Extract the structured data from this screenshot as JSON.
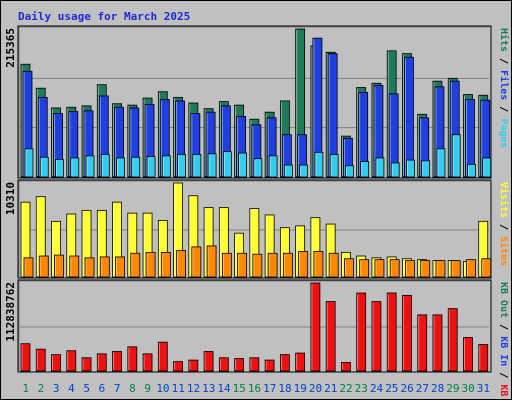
{
  "chart_data": [
    {
      "type": "bar",
      "title": "Daily usage for March 2025",
      "ymax_label": "215365",
      "categories": [
        "1",
        "2",
        "3",
        "4",
        "5",
        "6",
        "7",
        "8",
        "9",
        "10",
        "11",
        "12",
        "13",
        "14",
        "15",
        "16",
        "17",
        "18",
        "19",
        "20",
        "21",
        "22",
        "23",
        "24",
        "25",
        "26",
        "27",
        "28",
        "29",
        "30",
        "31"
      ],
      "weekend_days": [
        "1",
        "2",
        "8",
        "9",
        "15",
        "16",
        "22",
        "23",
        "29",
        "30"
      ],
      "series": [
        {
          "name": "Hits",
          "color": "#1f7a5a",
          "values": [
            160000,
            126000,
            98000,
            99000,
            101000,
            131000,
            104000,
            102000,
            112000,
            121000,
            113000,
            105000,
            97000,
            107000,
            102000,
            82000,
            92000,
            108000,
            210000,
            186000,
            177000,
            58000,
            127000,
            133000,
            179000,
            175000,
            89000,
            136000,
            140000,
            117000,
            116000
          ]
        },
        {
          "name": "Files",
          "color": "#1f3fe0",
          "values": [
            150000,
            113000,
            90000,
            93000,
            94000,
            115000,
            99000,
            98000,
            103000,
            110000,
            108000,
            90000,
            92000,
            101000,
            86000,
            74000,
            84000,
            60000,
            60000,
            197000,
            175000,
            55000,
            120000,
            130000,
            118000,
            170000,
            84000,
            128000,
            136000,
            110000,
            109000
          ]
        },
        {
          "name": "Pages",
          "color": "#33ccee",
          "values": [
            40000,
            28000,
            25000,
            27000,
            30000,
            32000,
            27000,
            28000,
            29000,
            30000,
            32000,
            32000,
            33000,
            36000,
            34000,
            26000,
            30000,
            17000,
            17000,
            35000,
            32000,
            16000,
            22000,
            27000,
            20000,
            24000,
            23000,
            40000,
            60000,
            18000,
            27000
          ]
        }
      ]
    },
    {
      "type": "bar",
      "ymax_label": "10310",
      "categories": [
        "1",
        "2",
        "3",
        "4",
        "5",
        "6",
        "7",
        "8",
        "9",
        "10",
        "11",
        "12",
        "13",
        "14",
        "15",
        "16",
        "17",
        "18",
        "19",
        "20",
        "21",
        "22",
        "23",
        "24",
        "25",
        "26",
        "27",
        "28",
        "29",
        "30",
        "31"
      ],
      "series": [
        {
          "name": "Visits",
          "color": "#ffff33",
          "values": [
            8200,
            8800,
            6100,
            6900,
            7300,
            7300,
            8200,
            7000,
            7000,
            6200,
            10300,
            8900,
            7600,
            7600,
            4800,
            7500,
            6800,
            5400,
            5600,
            6500,
            5800,
            2700,
            2300,
            2100,
            2200,
            2000,
            1900,
            1800,
            1800,
            1700,
            6100
          ]
        },
        {
          "name": "Sites",
          "color": "#ff8800",
          "values": [
            2100,
            2300,
            2400,
            2300,
            2100,
            2200,
            2200,
            2600,
            2700,
            2700,
            2900,
            3300,
            3400,
            2600,
            2600,
            2500,
            2600,
            2600,
            2800,
            2800,
            2600,
            2000,
            1900,
            1900,
            1900,
            1800,
            1800,
            1800,
            1800,
            1900,
            2000
          ]
        }
      ]
    },
    {
      "type": "bar",
      "ymax_label": "112838762",
      "categories": [
        "1",
        "2",
        "3",
        "4",
        "5",
        "6",
        "7",
        "8",
        "9",
        "10",
        "11",
        "12",
        "13",
        "14",
        "15",
        "16",
        "17",
        "18",
        "19",
        "20",
        "21",
        "22",
        "23",
        "24",
        "25",
        "26",
        "27",
        "28",
        "29",
        "30",
        "31"
      ],
      "series": [
        {
          "name": "KBytes",
          "color": "#ee1111",
          "values": [
            35000000,
            28000000,
            21000000,
            26000000,
            17000000,
            22000000,
            25000000,
            31000000,
            22000000,
            37000000,
            12000000,
            14000000,
            25000000,
            17000000,
            16000000,
            17000000,
            14000000,
            21000000,
            23000000,
            112838762,
            89000000,
            11000000,
            100000000,
            89000000,
            100000000,
            97000000,
            72000000,
            72000000,
            80000000,
            43000000,
            34000000
          ]
        }
      ]
    }
  ],
  "legend_right": {
    "top": [
      "Pages",
      " / ",
      "Files",
      " / ",
      "Hits"
    ],
    "middle": [
      "Sites",
      " / ",
      "Visits"
    ],
    "bottom": [
      "KB F",
      " / ",
      "KB In",
      " / ",
      "KB Out"
    ]
  },
  "colors": {
    "frame_bg": "#c0c0c0",
    "plot_bg": "#c0c0c0",
    "title": "#1d2bd6",
    "weekday_label": "#0044cc",
    "weekend_label": "#00804a"
  }
}
